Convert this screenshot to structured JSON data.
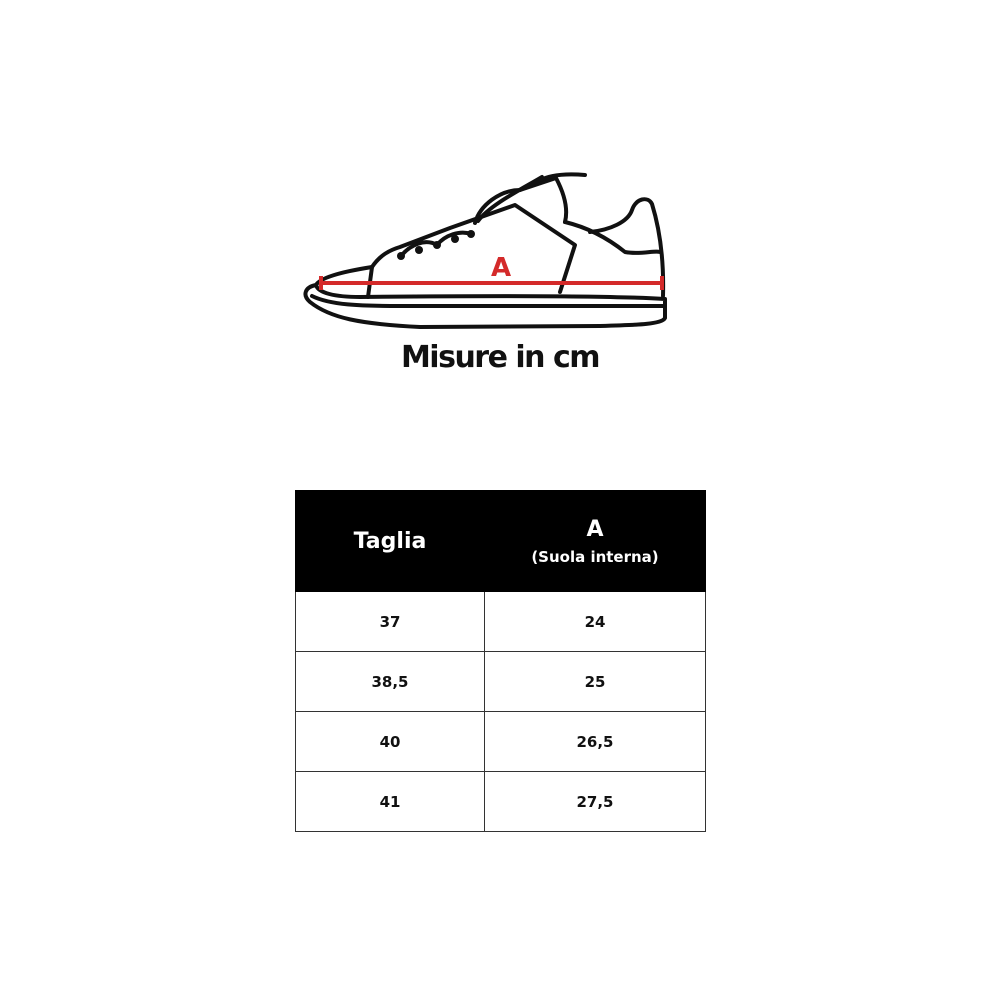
{
  "diagram": {
    "measure_label": "A",
    "line_color": "#d42a2a"
  },
  "title": "Misure in cm",
  "table": {
    "headers": {
      "size": "Taglia",
      "measure": "A",
      "measure_sub": "(Suola interna)"
    },
    "rows": [
      {
        "size": "37",
        "a": "24"
      },
      {
        "size": "38,5",
        "a": "25"
      },
      {
        "size": "40",
        "a": "26,5"
      },
      {
        "size": "41",
        "a": "27,5"
      }
    ]
  }
}
